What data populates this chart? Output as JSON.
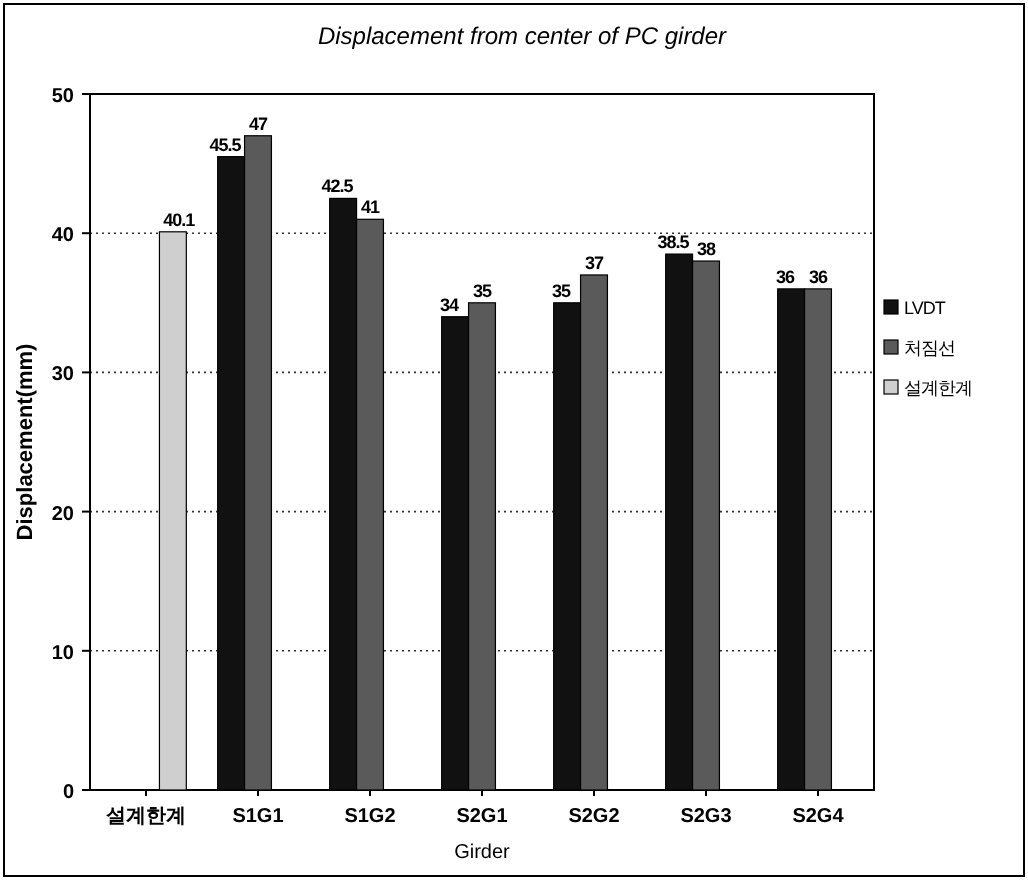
{
  "chart_data": {
    "type": "bar",
    "title": "Displacement from center of PC girder",
    "xlabel": "Girder",
    "ylabel": "Displacement(mm)",
    "categories": [
      "설계한계",
      "S1G1",
      "S1G2",
      "S2G1",
      "S2G2",
      "S2G3",
      "S2G4"
    ],
    "series": [
      {
        "name": "LVDT",
        "color": "#111111",
        "values": [
          null,
          45.5,
          42.5,
          34,
          35,
          38.5,
          36
        ]
      },
      {
        "name": "처짐선",
        "color": "#5a5a5a",
        "values": [
          null,
          47,
          41,
          35,
          37,
          38,
          36
        ]
      },
      {
        "name": "설계한계",
        "color": "#cfcfcf",
        "values": [
          40.1,
          null,
          null,
          null,
          null,
          null,
          null
        ]
      }
    ],
    "ylim": [
      0,
      50
    ],
    "yticks": [
      0,
      10,
      20,
      30,
      40,
      50
    ],
    "grid": "y",
    "legend": "right",
    "data_labels": true
  }
}
